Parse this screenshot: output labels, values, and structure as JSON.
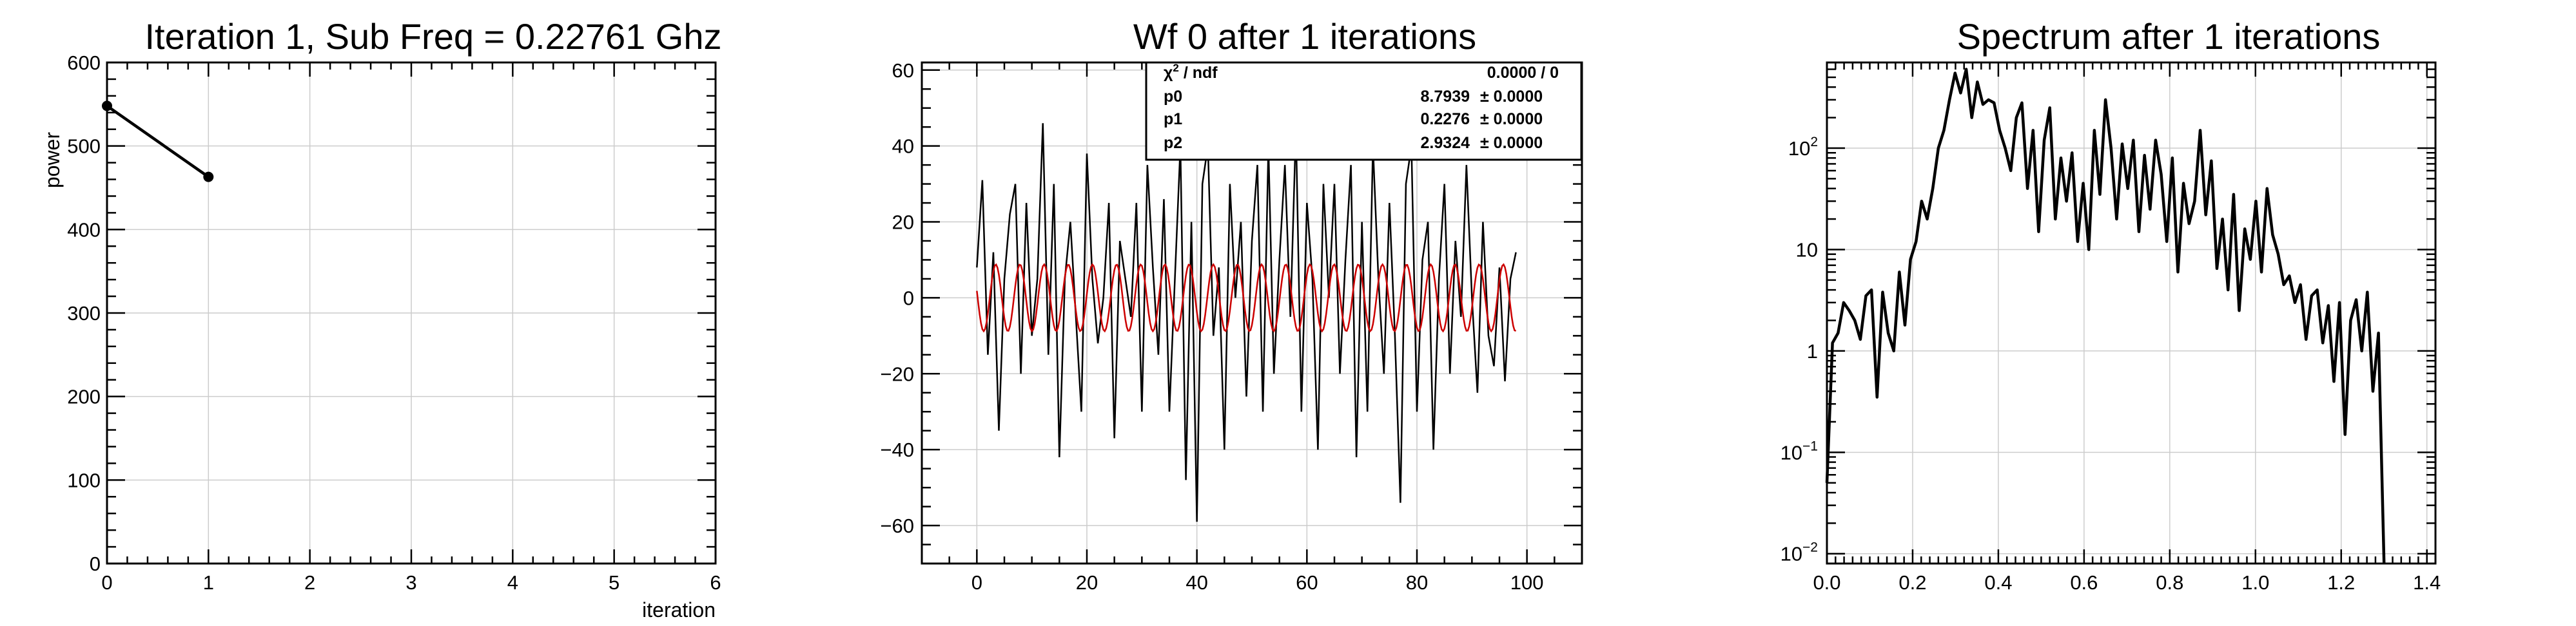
{
  "chart_data": [
    {
      "type": "line",
      "title": "Iteration 1, Sub Freq = 0.22761 Ghz",
      "xlabel": "iteration",
      "ylabel": "power",
      "xlim": [
        0,
        6
      ],
      "ylim": [
        0,
        600
      ],
      "x_ticks": [
        "0",
        "1",
        "2",
        "3",
        "4",
        "5",
        "6"
      ],
      "y_ticks": [
        "0",
        "100",
        "200",
        "300",
        "400",
        "500",
        "600"
      ],
      "grid": true,
      "series": [
        {
          "x": [
            0,
            1
          ],
          "y": [
            548,
            463
          ],
          "color": "#000000",
          "markers": true
        }
      ]
    },
    {
      "type": "line",
      "title": "Wf 0 after 1 iterations",
      "xlabel": "",
      "ylabel": "",
      "xlim": [
        -10,
        110
      ],
      "ylim": [
        -70,
        62
      ],
      "x_ticks": [
        "0",
        "20",
        "40",
        "60",
        "80",
        "100"
      ],
      "y_ticks": [
        "−60",
        "−40",
        "−20",
        "0",
        "20",
        "40",
        "60"
      ],
      "grid": true,
      "series": [
        {
          "x_start": 0,
          "x_step": 1,
          "y": [
            8,
            31,
            -15,
            12,
            -35,
            5,
            22,
            30,
            -20,
            25,
            -10,
            5,
            46,
            -15,
            30,
            -42,
            5,
            20,
            -5,
            -30,
            38,
            5,
            -12,
            0,
            25,
            -37,
            15,
            5,
            -5,
            25,
            -30,
            35,
            8,
            -15,
            26,
            -30,
            5,
            40,
            -48,
            20,
            -59,
            30,
            40,
            -10,
            8,
            -40,
            30,
            0,
            20,
            -26,
            15,
            35,
            -30,
            40,
            -20,
            10,
            35,
            -5,
            45,
            -30,
            25,
            5,
            -40,
            30,
            0,
            30,
            -20,
            10,
            35,
            -42,
            20,
            -30,
            40,
            5,
            -20,
            25,
            -10,
            -54,
            30,
            40,
            -30,
            10,
            20,
            -40,
            5,
            30,
            -20,
            15,
            -5,
            35,
            0,
            -25,
            20,
            -10,
            -18,
            8,
            -22,
            5,
            12
          ],
          "color": "#000000"
        },
        {
          "type": "sine_fit",
          "p0": 8.7939,
          "p1": 0.2276,
          "p2": 2.9324,
          "x_range": [
            0,
            98
          ],
          "color": "#cc0000"
        }
      ],
      "stats_box": {
        "rows": [
          {
            "label": "χ² / ndf",
            "value": "0.0000 / 0"
          },
          {
            "label": "p0",
            "value": "8.7939",
            "err": "± 0.0000"
          },
          {
            "label": "p1",
            "value": "0.2276",
            "err": "± 0.0000"
          },
          {
            "label": "p2",
            "value": "2.9324",
            "err": "± 0.0000"
          }
        ]
      }
    },
    {
      "type": "line",
      "title": "Spectrum after 1 iterations",
      "xlabel": "",
      "ylabel": "",
      "xlim": [
        0,
        1.42
      ],
      "ylim": [
        0.008,
        700
      ],
      "log_y": true,
      "x_ticks": [
        "0.0",
        "0.2",
        "0.4",
        "0.6",
        "0.8",
        "1.0",
        "1.2",
        "1.4"
      ],
      "x_tick_values": [
        0,
        0.2,
        0.4,
        0.6,
        0.8,
        1.0,
        1.2,
        1.4
      ],
      "y_tick_values": [
        0.01,
        0.1,
        1,
        10,
        100
      ],
      "y_ticks": [
        {
          "base": "10",
          "exp": "−2"
        },
        {
          "base": "10",
          "exp": "−1"
        },
        {
          "base": "1",
          "exp": ""
        },
        {
          "base": "10",
          "exp": ""
        },
        {
          "base": "10",
          "exp": "2"
        }
      ],
      "grid": true,
      "series": [
        {
          "x": [
            0.0,
            0.013,
            0.026,
            0.039,
            0.052,
            0.065,
            0.078,
            0.091,
            0.104,
            0.117,
            0.13,
            0.143,
            0.156,
            0.169,
            0.182,
            0.195,
            0.208,
            0.221,
            0.234,
            0.247,
            0.26,
            0.273,
            0.286,
            0.299,
            0.312,
            0.325,
            0.338,
            0.351,
            0.364,
            0.377,
            0.39,
            0.403,
            0.416,
            0.429,
            0.442,
            0.455,
            0.468,
            0.481,
            0.494,
            0.507,
            0.52,
            0.533,
            0.546,
            0.559,
            0.572,
            0.585,
            0.598,
            0.611,
            0.624,
            0.637,
            0.65,
            0.663,
            0.676,
            0.689,
            0.702,
            0.715,
            0.728,
            0.741,
            0.754,
            0.767,
            0.78,
            0.793,
            0.806,
            0.819,
            0.832,
            0.845,
            0.858,
            0.871,
            0.884,
            0.897,
            0.91,
            0.923,
            0.936,
            0.949,
            0.962,
            0.975,
            0.988,
            1.001,
            1.014,
            1.027,
            1.04,
            1.053,
            1.066,
            1.079,
            1.092,
            1.105,
            1.118,
            1.131,
            1.144,
            1.157,
            1.17,
            1.183,
            1.196,
            1.209,
            1.222,
            1.235,
            1.248,
            1.261,
            1.274,
            1.287,
            1.3
          ],
          "y": [
            0.05,
            1.2,
            1.5,
            3.0,
            2.5,
            2.0,
            1.3,
            3.5,
            4.0,
            0.35,
            3.8,
            1.5,
            1.0,
            6.0,
            1.8,
            8.0,
            12,
            30,
            20,
            40,
            100,
            150,
            300,
            550,
            350,
            600,
            200,
            450,
            270,
            300,
            280,
            150,
            100,
            60,
            200,
            280,
            40,
            150,
            15,
            120,
            250,
            20,
            80,
            30,
            90,
            12,
            45,
            10,
            150,
            35,
            300,
            100,
            20,
            110,
            40,
            120,
            15,
            85,
            25,
            120,
            55,
            12,
            80,
            6,
            45,
            18,
            30,
            150,
            22,
            75,
            6.5,
            20,
            4.0,
            35,
            2.5,
            16,
            8,
            30,
            6,
            40,
            14,
            9,
            4.5,
            5.5,
            3.0,
            4.5,
            1.3,
            3.5,
            4.0,
            1.2,
            2.8,
            0.5,
            3.0,
            0.15,
            2.0,
            3.2,
            1.0,
            3.8,
            0.4,
            1.5,
            0.005
          ],
          "color": "#000000"
        }
      ]
    }
  ]
}
